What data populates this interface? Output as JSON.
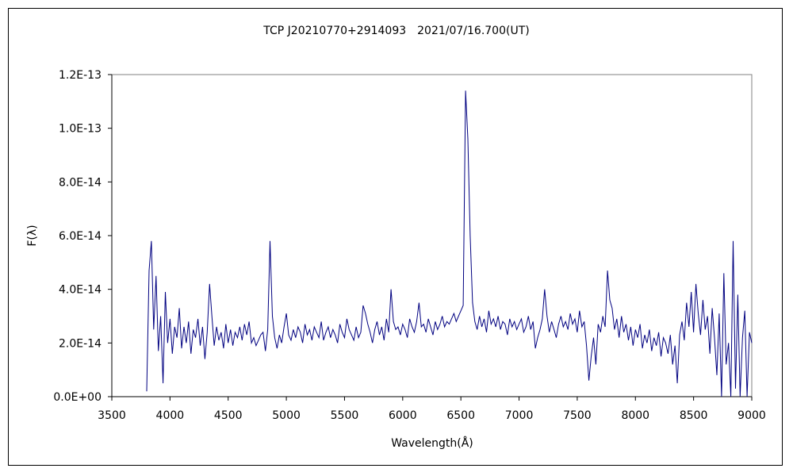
{
  "chart_data": {
    "type": "line",
    "title": "TCP J20210770+2914093　2021/07/16.700(UT)",
    "xlabel": "Wavelength(Å)",
    "ylabel": "F(λ)",
    "xlim": [
      3500,
      9000
    ],
    "ylim": [
      0,
      1.2e-13
    ],
    "x_ticks": [
      3500,
      4000,
      4500,
      5000,
      5500,
      6000,
      6500,
      7000,
      7500,
      8000,
      8500,
      9000
    ],
    "x_tick_labels": [
      "3500",
      "4000",
      "4500",
      "5000",
      "5500",
      "6000",
      "6500",
      "7000",
      "7500",
      "8000",
      "8500",
      "9000"
    ],
    "y_ticks": [
      0,
      2e-14,
      4e-14,
      6e-14,
      8e-14,
      1e-13,
      1.2e-13
    ],
    "y_tick_labels": [
      "0.0E+00",
      "2.0E-14",
      "4.0E-14",
      "6.0E-14",
      "8.0E-14",
      "1.0E-13",
      "1.2E-13"
    ],
    "grid": false,
    "legend": "none",
    "series": [
      {
        "name": "spectrum",
        "color": "#000080",
        "x_start": 3800,
        "x_step": 20,
        "y_scale": 1e-14,
        "values": [
          0.2,
          4.7,
          5.8,
          2.5,
          4.5,
          1.7,
          3.0,
          0.5,
          3.9,
          2.0,
          2.9,
          1.6,
          2.6,
          2.2,
          3.3,
          1.8,
          2.6,
          2.0,
          2.8,
          1.6,
          2.5,
          2.2,
          2.9,
          1.9,
          2.6,
          1.4,
          2.4,
          4.2,
          3.0,
          1.9,
          2.6,
          2.1,
          2.4,
          1.8,
          2.7,
          2.0,
          2.5,
          1.9,
          2.4,
          2.2,
          2.6,
          2.1,
          2.7,
          2.3,
          2.8,
          2.0,
          2.2,
          1.9,
          2.1,
          2.3,
          2.4,
          1.7,
          2.5,
          5.8,
          3.0,
          2.2,
          1.8,
          2.3,
          2.0,
          2.6,
          3.1,
          2.3,
          2.1,
          2.5,
          2.2,
          2.6,
          2.4,
          2.0,
          2.7,
          2.3,
          2.5,
          2.1,
          2.6,
          2.4,
          2.2,
          2.8,
          2.1,
          2.4,
          2.6,
          2.2,
          2.5,
          2.3,
          2.0,
          2.7,
          2.4,
          2.2,
          2.9,
          2.5,
          2.3,
          2.1,
          2.6,
          2.2,
          2.4,
          3.4,
          3.1,
          2.7,
          2.4,
          2.0,
          2.5,
          2.8,
          2.3,
          2.6,
          2.1,
          2.9,
          2.4,
          4.0,
          2.8,
          2.5,
          2.6,
          2.3,
          2.7,
          2.5,
          2.2,
          2.9,
          2.6,
          2.4,
          2.8,
          3.5,
          2.6,
          2.7,
          2.4,
          2.9,
          2.6,
          2.3,
          2.8,
          2.5,
          2.7,
          3.0,
          2.6,
          2.8,
          2.7,
          2.9,
          3.1,
          2.8,
          3.0,
          3.2,
          3.4,
          11.4,
          9.6,
          6.0,
          3.5,
          2.8,
          2.5,
          3.0,
          2.6,
          2.9,
          2.4,
          3.2,
          2.7,
          2.9,
          2.6,
          3.0,
          2.5,
          2.8,
          2.7,
          2.3,
          2.9,
          2.6,
          2.8,
          2.5,
          2.7,
          2.9,
          2.4,
          2.6,
          3.0,
          2.5,
          2.8,
          1.8,
          2.2,
          2.5,
          2.9,
          4.0,
          3.0,
          2.4,
          2.8,
          2.5,
          2.2,
          2.7,
          3.0,
          2.6,
          2.8,
          2.5,
          3.1,
          2.7,
          2.9,
          2.4,
          3.2,
          2.6,
          2.8,
          1.9,
          0.6,
          1.5,
          2.2,
          1.2,
          2.7,
          2.4,
          3.0,
          2.6,
          4.7,
          3.6,
          3.3,
          2.5,
          2.9,
          2.2,
          3.0,
          2.4,
          2.7,
          2.1,
          2.6,
          1.9,
          2.5,
          2.2,
          2.7,
          1.8,
          2.3,
          2.0,
          2.5,
          1.7,
          2.2,
          1.9,
          2.4,
          1.5,
          2.2,
          2.0,
          1.6,
          2.3,
          1.2,
          1.9,
          0.5,
          2.3,
          2.8,
          2.1,
          3.5,
          2.6,
          3.9,
          2.4,
          4.2,
          3.1,
          2.3,
          3.6,
          2.5,
          3.0,
          1.6,
          3.3,
          2.2,
          0.8,
          3.1,
          0.0,
          4.6,
          1.2,
          2.0,
          0.0,
          5.8,
          0.3,
          3.8,
          0.0,
          2.2,
          3.2,
          0.0,
          2.4,
          2.0
        ]
      }
    ]
  }
}
